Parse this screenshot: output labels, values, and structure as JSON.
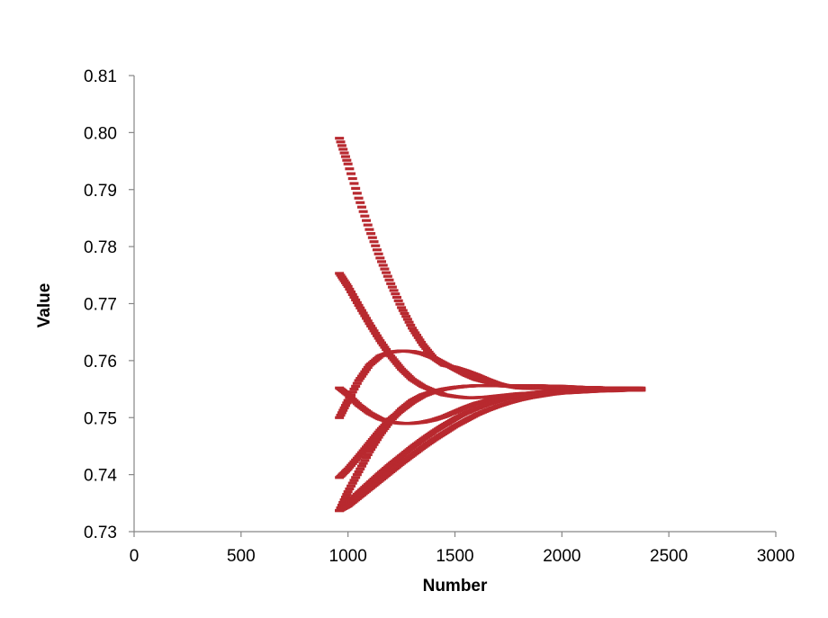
{
  "chart_data": {
    "type": "scatter",
    "title": "",
    "xlabel": "Number",
    "ylabel": "Value",
    "xlim": [
      0,
      3000
    ],
    "ylim": [
      0.73,
      0.81
    ],
    "xticks": [
      0,
      500,
      1000,
      1500,
      2000,
      2500,
      3000
    ],
    "yticks": [
      0.73,
      0.74,
      0.75,
      0.76,
      0.77,
      0.78,
      0.79,
      0.8,
      0.81
    ],
    "xtick_labels": [
      "0",
      "500",
      "1000",
      "1500",
      "2000",
      "2500",
      "3000"
    ],
    "ytick_labels": [
      "0.73",
      "0.74",
      "0.75",
      "0.76",
      "0.77",
      "0.78",
      "0.79",
      "0.80",
      "0.81"
    ],
    "grid": false,
    "legend": "none",
    "marker_color": "#b8292f",
    "marker_shape": "dash",
    "series": [
      {
        "x": [
          960,
          1000,
          1050,
          1100,
          1150,
          1200,
          1250,
          1300,
          1350,
          1400,
          1450,
          1500,
          1550,
          1600,
          1650,
          1700,
          1750,
          1800,
          1850,
          1900,
          1950,
          2000,
          2050,
          2100,
          2150,
          2200,
          2250,
          2300,
          2370
        ],
        "y": [
          0.799,
          0.7945,
          0.7885,
          0.783,
          0.778,
          0.7735,
          0.7693,
          0.7657,
          0.7628,
          0.7605,
          0.7592,
          0.7588,
          0.7582,
          0.7575,
          0.7567,
          0.756,
          0.7555,
          0.7552,
          0.7551,
          0.7551,
          0.7551,
          0.7551,
          0.7551,
          0.7551,
          0.755,
          0.755,
          0.755,
          0.755,
          0.755
        ]
      },
      {
        "x": [
          960,
          1000,
          1050,
          1100,
          1150,
          1200,
          1250,
          1300,
          1350,
          1400,
          1450,
          1500,
          1550,
          1600,
          1650,
          1700,
          1750,
          1800,
          1850,
          1900,
          1950,
          2000,
          2050,
          2100,
          2150,
          2200,
          2250,
          2300,
          2370
        ],
        "y": [
          0.7753,
          0.773,
          0.7697,
          0.7665,
          0.7635,
          0.7608,
          0.7585,
          0.7567,
          0.7555,
          0.7547,
          0.754,
          0.7537,
          0.7535,
          0.7535,
          0.7536,
          0.7538,
          0.754,
          0.7542,
          0.7543,
          0.7545,
          0.7546,
          0.7547,
          0.7548,
          0.7548,
          0.7549,
          0.7549,
          0.7549,
          0.7549,
          0.7549
        ]
      },
      {
        "x": [
          960,
          1000,
          1050,
          1100,
          1150,
          1200,
          1250,
          1300,
          1350,
          1400,
          1450,
          1500,
          1550,
          1600,
          1650,
          1700,
          1750,
          1800,
          1850,
          1900,
          1950,
          2000,
          2050,
          2100,
          2150,
          2200,
          2250,
          2300,
          2370
        ],
        "y": [
          0.75,
          0.753,
          0.7565,
          0.7592,
          0.7608,
          0.7615,
          0.7617,
          0.7616,
          0.7612,
          0.7605,
          0.7595,
          0.7585,
          0.7575,
          0.7567,
          0.7562,
          0.7558,
          0.7556,
          0.7555,
          0.7555,
          0.7555,
          0.7555,
          0.7554,
          0.7554,
          0.7553,
          0.7553,
          0.7552,
          0.7552,
          0.7552,
          0.7552
        ]
      },
      {
        "x": [
          960,
          1000,
          1050,
          1100,
          1150,
          1200,
          1250,
          1300,
          1350,
          1400,
          1450,
          1500,
          1550,
          1600,
          1650,
          1700,
          1750,
          1800,
          1850,
          1900,
          1950,
          2000,
          2050,
          2100,
          2150,
          2200,
          2250,
          2300,
          2370
        ],
        "y": [
          0.7552,
          0.754,
          0.7522,
          0.7508,
          0.7498,
          0.7492,
          0.749,
          0.749,
          0.7492,
          0.7496,
          0.7502,
          0.751,
          0.7518,
          0.7525,
          0.753,
          0.7535,
          0.7538,
          0.7541,
          0.7543,
          0.7545,
          0.7546,
          0.7547,
          0.7548,
          0.7548,
          0.7549,
          0.7549,
          0.7549,
          0.7549,
          0.7549
        ]
      },
      {
        "x": [
          960,
          1000,
          1050,
          1100,
          1150,
          1200,
          1250,
          1300,
          1350,
          1400,
          1450,
          1500,
          1550,
          1600,
          1650,
          1700,
          1750,
          1800,
          1850,
          1900,
          1950,
          2000,
          2050,
          2100,
          2150,
          2200,
          2250,
          2300,
          2370
        ],
        "y": [
          0.7395,
          0.741,
          0.7432,
          0.7455,
          0.7478,
          0.7498,
          0.7513,
          0.7527,
          0.7538,
          0.7545,
          0.755,
          0.7553,
          0.7555,
          0.7556,
          0.7556,
          0.7556,
          0.7556,
          0.7556,
          0.7556,
          0.7556,
          0.7555,
          0.7555,
          0.7554,
          0.7553,
          0.7553,
          0.7552,
          0.7552,
          0.7551,
          0.7551
        ]
      },
      {
        "x": [
          960,
          1000,
          1050,
          1100,
          1150,
          1200,
          1250,
          1300,
          1350,
          1400,
          1450,
          1500,
          1550,
          1600,
          1650,
          1700,
          1750,
          1800,
          1850,
          1900,
          1950,
          2000,
          2050,
          2100,
          2150,
          2200,
          2250,
          2300,
          2370
        ],
        "y": [
          0.7337,
          0.737,
          0.7405,
          0.744,
          0.747,
          0.7495,
          0.7515,
          0.753,
          0.754,
          0.7546,
          0.755,
          0.7553,
          0.7555,
          0.7556,
          0.7556,
          0.7556,
          0.7555,
          0.7555,
          0.7554,
          0.7553,
          0.7553,
          0.7552,
          0.7552,
          0.7551,
          0.7551,
          0.755,
          0.755,
          0.755,
          0.755
        ]
      },
      {
        "x": [
          960,
          1000,
          1050,
          1100,
          1150,
          1200,
          1250,
          1300,
          1350,
          1400,
          1450,
          1500,
          1550,
          1600,
          1650,
          1700,
          1750,
          1800,
          1850,
          1900,
          1950,
          2000,
          2050,
          2100,
          2150,
          2200,
          2250,
          2300,
          2370
        ],
        "y": [
          0.7337,
          0.735,
          0.7368,
          0.7385,
          0.7402,
          0.7418,
          0.7433,
          0.7448,
          0.7462,
          0.7475,
          0.7487,
          0.7498,
          0.7508,
          0.7516,
          0.7523,
          0.7529,
          0.7534,
          0.7538,
          0.7541,
          0.7543,
          0.7545,
          0.7546,
          0.7547,
          0.7548,
          0.7548,
          0.7549,
          0.7549,
          0.7549,
          0.7549
        ]
      },
      {
        "x": [
          960,
          1000,
          1050,
          1100,
          1150,
          1200,
          1250,
          1300,
          1350,
          1400,
          1450,
          1500,
          1550,
          1600,
          1650,
          1700,
          1750,
          1800,
          1850,
          1900,
          1950,
          2000,
          2050,
          2100,
          2150,
          2200,
          2250,
          2300,
          2370
        ],
        "y": [
          0.7337,
          0.7345,
          0.736,
          0.7375,
          0.739,
          0.7405,
          0.742,
          0.7434,
          0.7448,
          0.7461,
          0.7473,
          0.7485,
          0.7495,
          0.7505,
          0.7513,
          0.752,
          0.7526,
          0.7531,
          0.7535,
          0.7538,
          0.7541,
          0.7543,
          0.7544,
          0.7545,
          0.7546,
          0.7547,
          0.7547,
          0.7548,
          0.7548
        ]
      }
    ]
  }
}
